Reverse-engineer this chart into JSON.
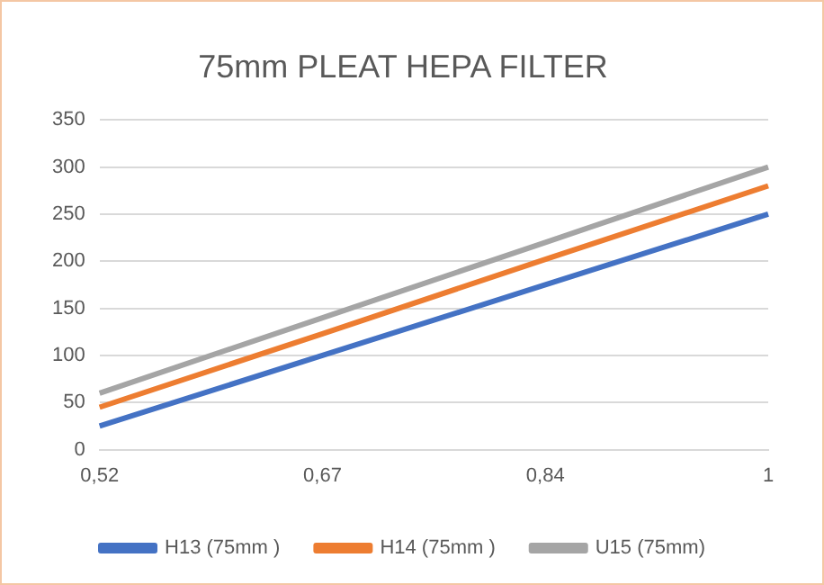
{
  "chart_data": {
    "type": "line",
    "title": "75mm PLEAT HEPA FILTER",
    "categories": [
      "0,52",
      "0,67",
      "0,84",
      "1"
    ],
    "series": [
      {
        "name": "H13 (75mm )",
        "color": "#4472c4",
        "values": [
          25,
          100,
          175,
          250
        ]
      },
      {
        "name": "H14 (75mm )",
        "color": "#ed7d31",
        "values": [
          45,
          123,
          202,
          280
        ]
      },
      {
        "name": "U15 (75mm)",
        "color": "#a5a5a5",
        "values": [
          60,
          140,
          220,
          300
        ]
      }
    ],
    "ylim": [
      0,
      350
    ],
    "yticks": [
      0,
      50,
      100,
      150,
      200,
      250,
      300,
      350
    ],
    "grid": "y",
    "legend": "bottom",
    "marker": "none",
    "line_style": "solid"
  }
}
